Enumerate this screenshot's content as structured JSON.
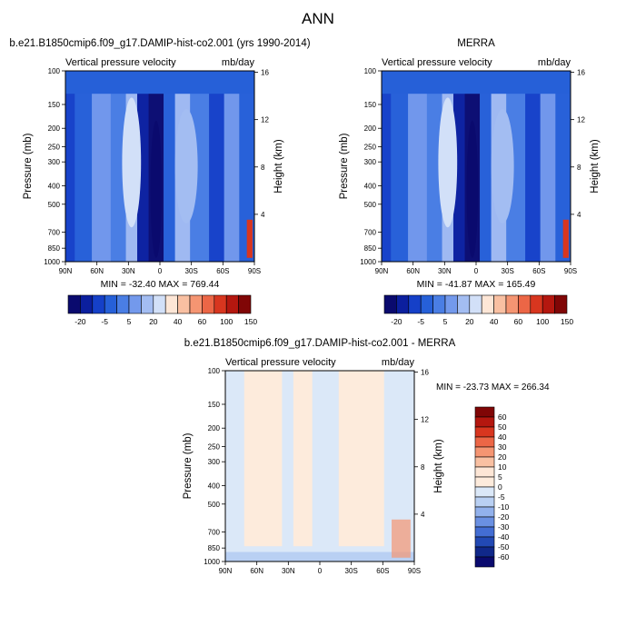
{
  "title": "ANN",
  "pressure_ticks": [
    100,
    150,
    200,
    250,
    300,
    400,
    500,
    700,
    850,
    1000
  ],
  "height_ticks": [
    4,
    8,
    12,
    16
  ],
  "lat_ticks": [
    "90N",
    "60N",
    "30N",
    "0",
    "30S",
    "60S",
    "90S"
  ],
  "chart_data": [
    {
      "type": "heatmap",
      "title": "b.e21.B1850cmip6.f09_g17.DAMIP-hist-co2.001 (yrs 1990-2014)",
      "left_label": "Vertical pressure velocity",
      "right_label": "mb/day",
      "xlabel": "",
      "ylabel": "Pressure (mb)",
      "y2label": "Height (km)",
      "ylim": [
        1000,
        100
      ],
      "stats": "MIN = -32.40  MAX = 769.44",
      "colorbar_labels": [
        "-20",
        "-5",
        "5",
        "20",
        "40",
        "60",
        "100",
        "150"
      ]
    },
    {
      "type": "heatmap",
      "title": "MERRA",
      "left_label": "Vertical pressure velocity",
      "right_label": "mb/day",
      "xlabel": "",
      "ylabel": "Pressure (mb)",
      "y2label": "Height (km)",
      "ylim": [
        1000,
        100
      ],
      "stats": "MIN = -41.87  MAX = 165.49",
      "colorbar_labels": [
        "-20",
        "-5",
        "5",
        "20",
        "40",
        "60",
        "100",
        "150"
      ]
    },
    {
      "type": "heatmap",
      "title": "b.e21.B1850cmip6.f09_g17.DAMIP-hist-co2.001 - MERRA",
      "left_label": "Vertical pressure velocity",
      "right_label": "mb/day",
      "xlabel": "",
      "ylabel": "Pressure (mb)",
      "y2label": "Height (km)",
      "ylim": [
        1000,
        100
      ],
      "stats": "MIN = -23.73  MAX = 266.34",
      "colorbar_labels": [
        "60",
        "50",
        "40",
        "30",
        "20",
        "10",
        "5",
        "0",
        "-5",
        "-10",
        "-20",
        "-30",
        "-40",
        "-50",
        "-60"
      ]
    }
  ],
  "colors": {
    "abs_palette": [
      "#0a0a6e",
      "#0b1f9e",
      "#1540c8",
      "#2660d8",
      "#4a7ee4",
      "#7399ec",
      "#a3bdf2",
      "#d2e0f8",
      "#fde6d6",
      "#f9c0a2",
      "#f59572",
      "#ec6646",
      "#d8361f",
      "#b4170f",
      "#800606"
    ],
    "diff_palette": [
      "#800606",
      "#b4170f",
      "#d8361f",
      "#ec6646",
      "#f59572",
      "#f9c0a2",
      "#fde6d6",
      "#fdebdc",
      "#dbe8f8",
      "#b9d0f3",
      "#92b1ec",
      "#6a90e2",
      "#436dd3",
      "#2249b4",
      "#10288a",
      "#0a0a6e"
    ]
  }
}
